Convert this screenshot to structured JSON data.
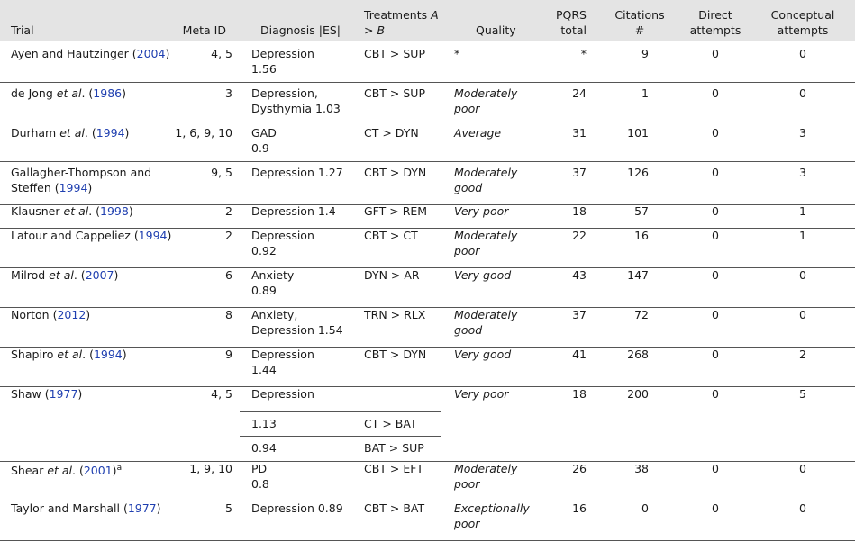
{
  "header": {
    "trial": "Trial",
    "meta_id": "Meta ID",
    "diagnosis": "Diagnosis |ES|",
    "treatments_line1": "Treatments ",
    "treatments_A": "A",
    "treatments_gt": "> ",
    "treatments_B": "B",
    "quality": "Quality",
    "pqrs_line1": "PQRS",
    "pqrs_line2": "total",
    "citations_line1": "Citations",
    "citations_line2": "#",
    "direct_line1": "Direct",
    "direct_line2": "attempts",
    "conceptual_line1": "Conceptual",
    "conceptual_line2": "attempts"
  },
  "rows": [
    {
      "trial_a": "Ayen and Hautzinger (",
      "trial_italic": "",
      "trial_b": "",
      "year": "2004",
      "trial_c": ")",
      "sup": "",
      "meta_id": "4, 5",
      "diag1": "Depression",
      "diag2": "1.56",
      "treat": "CBT > SUP",
      "qual1": "*",
      "qual2": "",
      "pqrs": "*",
      "citations": "9",
      "direct": "0",
      "conceptual": "0"
    },
    {
      "trial_a": "de Jong ",
      "trial_italic": "et al",
      "trial_b": ". (",
      "year": "1986",
      "trial_c": ")",
      "sup": "",
      "meta_id": "3",
      "diag1": "Depression,",
      "diag2": "Dysthymia 1.03",
      "treat": "CBT > SUP",
      "qual1": "Moderately",
      "qual2": "poor",
      "pqrs": "24",
      "citations": "1",
      "direct": "0",
      "conceptual": "0"
    },
    {
      "trial_a": "Durham ",
      "trial_italic": "et al",
      "trial_b": ". (",
      "year": "1994",
      "trial_c": ")",
      "sup": "",
      "meta_id": "1, 6, 9, 10",
      "diag1": "GAD",
      "diag2": "0.9",
      "treat": "CT > DYN",
      "qual1": "Average",
      "qual2": "",
      "pqrs": "31",
      "citations": "101",
      "direct": "0",
      "conceptual": "3"
    },
    {
      "trial_a": "Gallagher-Thompson and",
      "trial_a2": "Steffen (",
      "trial_italic": "",
      "trial_b": "",
      "year": "1994",
      "trial_c": ")",
      "sup": "",
      "meta_id": "9, 5",
      "diag1": "Depression 1.27",
      "diag2": "",
      "treat": "CBT > DYN",
      "qual1": "Moderately",
      "qual2": "good",
      "pqrs": "37",
      "citations": "126",
      "direct": "0",
      "conceptual": "3"
    },
    {
      "trial_a": "Klausner ",
      "trial_italic": "et al",
      "trial_b": ". (",
      "year": "1998",
      "trial_c": ")",
      "sup": "",
      "meta_id": "2",
      "diag1": "Depression 1.4",
      "diag2": "",
      "treat": "GFT > REM",
      "qual1": "Very poor",
      "qual2": "",
      "pqrs": "18",
      "citations": "57",
      "direct": "0",
      "conceptual": "1"
    },
    {
      "trial_a": "Latour and Cappeliez (",
      "trial_italic": "",
      "trial_b": "",
      "year": "1994",
      "trial_c": ")",
      "sup": "",
      "meta_id": "2",
      "diag1": "Depression",
      "diag2": "0.92",
      "treat": "CBT > CT",
      "qual1": "Moderately",
      "qual2": "poor",
      "pqrs": "22",
      "citations": "16",
      "direct": "0",
      "conceptual": "1"
    },
    {
      "trial_a": "Milrod ",
      "trial_italic": "et al",
      "trial_b": ". (",
      "year": "2007",
      "trial_c": ")",
      "sup": "",
      "meta_id": "6",
      "diag1": "Anxiety",
      "diag2": "0.89",
      "treat": "DYN > AR",
      "qual1": "Very good",
      "qual2": "",
      "pqrs": "43",
      "citations": "147",
      "direct": "0",
      "conceptual": "0"
    },
    {
      "trial_a": "Norton (",
      "trial_italic": "",
      "trial_b": "",
      "year": "2012",
      "trial_c": ")",
      "sup": "",
      "meta_id": "8",
      "diag1": "Anxiety,",
      "diag2": "Depression 1.54",
      "treat": "TRN > RLX",
      "qual1": "Moderately",
      "qual2": "good",
      "pqrs": "37",
      "citations": "72",
      "direct": "0",
      "conceptual": "0"
    },
    {
      "trial_a": "Shapiro ",
      "trial_italic": "et al",
      "trial_b": ". (",
      "year": "1994",
      "trial_c": ")",
      "sup": "",
      "meta_id": "9",
      "diag1": "Depression",
      "diag2": "1.44",
      "treat": "CBT > DYN",
      "qual1": "Very good",
      "qual2": "",
      "pqrs": "41",
      "citations": "268",
      "direct": "0",
      "conceptual": "2"
    },
    {
      "trial_a": "Shaw (",
      "trial_italic": "",
      "trial_b": "",
      "year": "1977",
      "trial_c": ")",
      "sup": "",
      "meta_id": "4, 5",
      "diag1": "Depression",
      "diag2": "",
      "treat": "",
      "qual1": "Very poor",
      "qual2": "",
      "pqrs": "18",
      "citations": "200",
      "direct": "0",
      "conceptual": "5",
      "sub": [
        {
          "diag": "1.13",
          "treat": "CT > BAT"
        },
        {
          "diag": "0.94",
          "treat": "BAT > SUP"
        }
      ]
    },
    {
      "trial_a": "Shear ",
      "trial_italic": "et al",
      "trial_b": ". (",
      "year": "2001",
      "trial_c": ")",
      "sup": "a",
      "meta_id": "1, 9, 10",
      "diag1": "PD",
      "diag2": "0.8",
      "treat": "CBT > EFT",
      "qual1": "Moderately",
      "qual2": "poor",
      "pqrs": "26",
      "citations": "38",
      "direct": "0",
      "conceptual": "0"
    },
    {
      "trial_a": "Taylor and Marshall (",
      "trial_italic": "",
      "trial_b": "",
      "year": "1977",
      "trial_c": ")",
      "sup": "",
      "meta_id": "5",
      "diag1": "Depression 0.89",
      "diag2": "",
      "treat": "CBT > BAT",
      "qual1": "Exceptionally",
      "qual2": "poor",
      "pqrs": "16",
      "citations": "0",
      "direct": "0",
      "conceptual": "0"
    }
  ]
}
